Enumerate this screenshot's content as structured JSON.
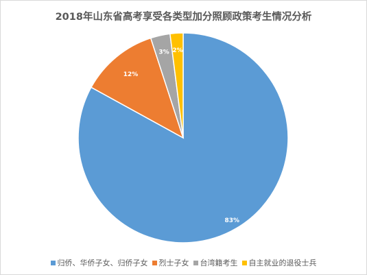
{
  "chart_data": {
    "type": "pie",
    "title": "2018年山东省高考享受各类型加分照顾政策考生情况分析",
    "categories": [
      "归侨、华侨子女、归侨子女",
      "烈士子女",
      "台湾籍考生",
      "自主就业的退役士兵"
    ],
    "values": [
      83,
      12,
      3,
      2
    ],
    "labels": [
      "83%",
      "12%",
      "3%",
      "2%"
    ],
    "colors": [
      "#5b9bd5",
      "#ed7d31",
      "#a5a5a5",
      "#ffc000"
    ],
    "start": "12 o'clock, clockwise",
    "legend_position": "bottom"
  }
}
